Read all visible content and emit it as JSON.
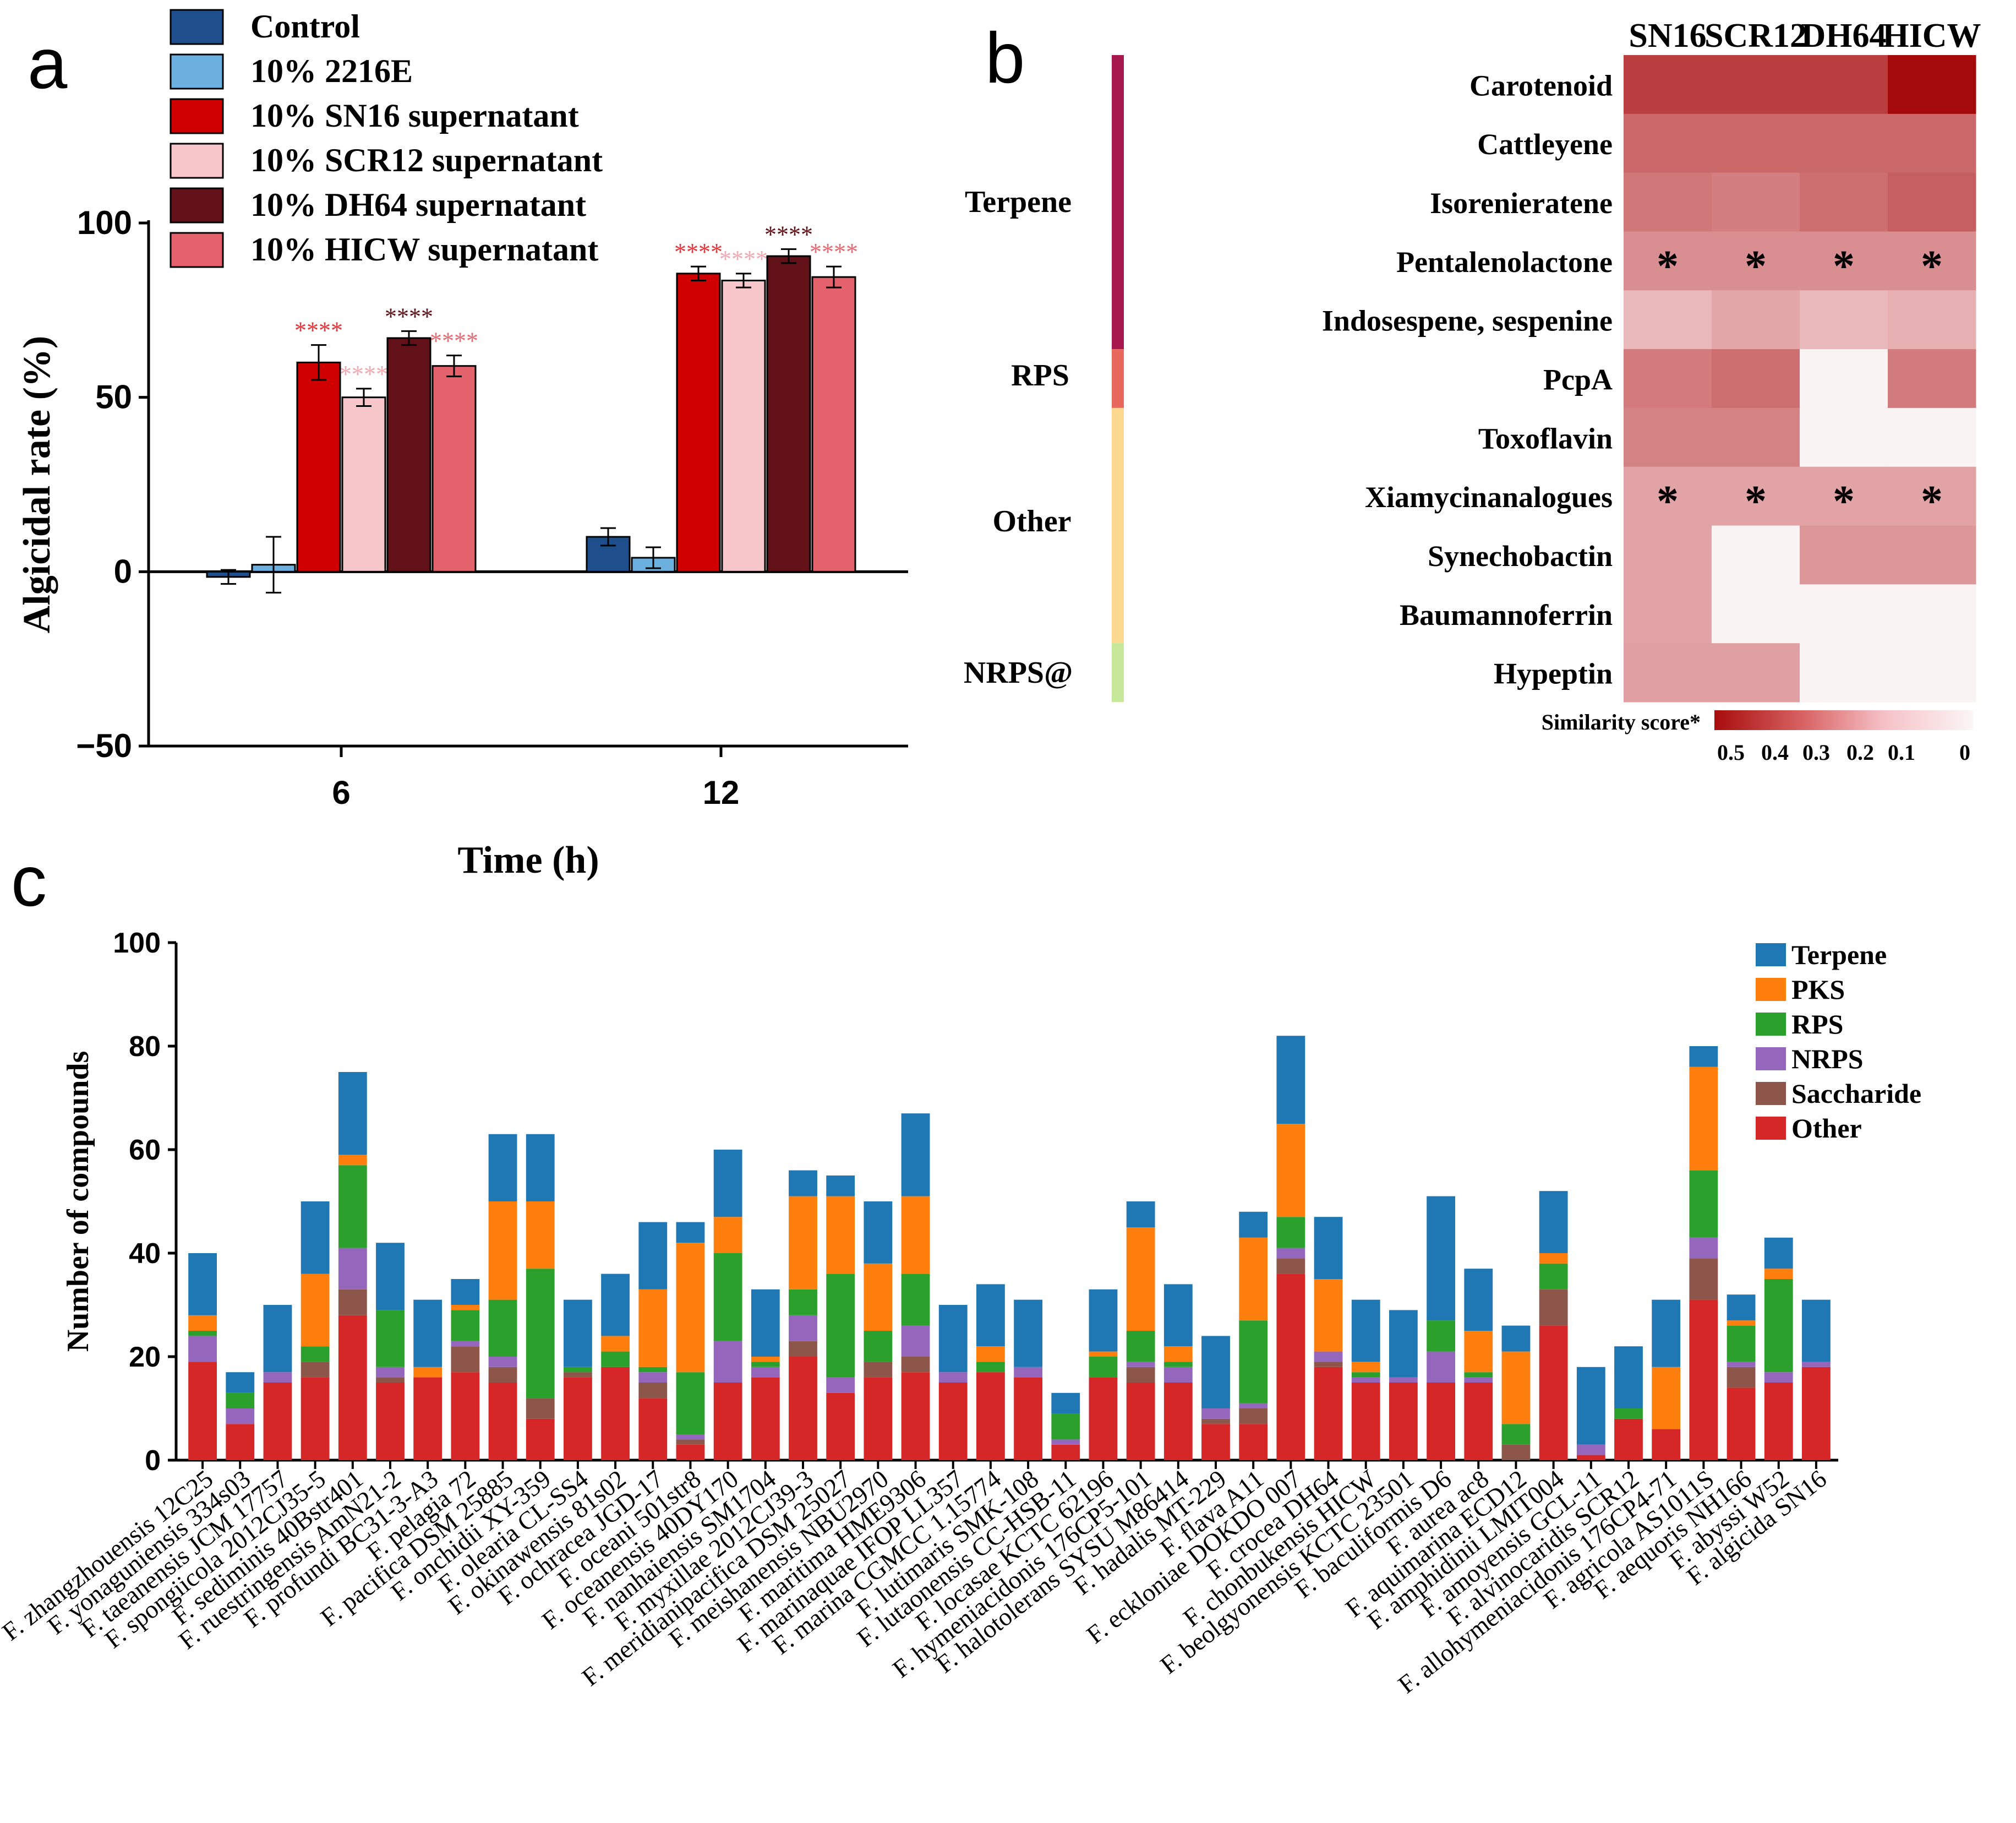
{
  "panel_labels": [
    "a",
    "b",
    "c"
  ],
  "chart_data": [
    {
      "type": "bar",
      "panel": "a",
      "title": "",
      "xlabel": "Time (h)",
      "ylabel": "Algicidal rate (%)",
      "ylim": [
        -50,
        100
      ],
      "yticks": [
        "−50",
        "0",
        "50",
        "100"
      ],
      "categories": [
        "6",
        "12"
      ],
      "significance": "****",
      "series": [
        {
          "name": "Control",
          "color": "#1f4e8c",
          "values": [
            -1.5,
            10
          ],
          "errors": [
            2,
            2.5
          ]
        },
        {
          "name": "10% 2216E",
          "color": "#6cb0e0",
          "values": [
            2,
            4
          ],
          "errors": [
            8,
            3
          ]
        },
        {
          "name": "10% SN16 supernatant",
          "color": "#d10000",
          "values": [
            60,
            85.5
          ],
          "errors": [
            5,
            2
          ]
        },
        {
          "name": "10% SCR12 supernatant",
          "color": "#f7c6cb",
          "values": [
            50,
            83.5
          ],
          "errors": [
            2.5,
            2
          ]
        },
        {
          "name": "10% DH64 supernatant",
          "color": "#621119",
          "values": [
            67,
            90.5
          ],
          "errors": [
            2,
            2
          ]
        },
        {
          "name": "10% HICW supernatant",
          "color": "#e3626b",
          "values": [
            59,
            84.5
          ],
          "errors": [
            3,
            3
          ]
        }
      ],
      "star_colors": [
        "#e8363b",
        "#f2aab2",
        "#621119",
        "#e86a73"
      ]
    },
    {
      "type": "heatmap",
      "panel": "b",
      "columns": [
        "SN16",
        "SCR12",
        "DH64",
        "HICW"
      ],
      "rows": [
        "Carotenoid",
        "Cattleyene",
        "Isorenieratene",
        "Pentalenolactone",
        "Indosespene, sespenine",
        "PcpA",
        "Toxoflavin",
        "Xiamycinanalogues",
        "Synechobactin",
        "Baumannoferrin",
        "Hypeptin"
      ],
      "groups": [
        {
          "name": "Terpene",
          "color": "#a7184f",
          "rows": [
            0,
            4
          ]
        },
        {
          "name": "RPS",
          "color": "#e8685e",
          "rows": [
            5,
            5
          ]
        },
        {
          "name": "Other",
          "color": "#fdd98f",
          "rows": [
            6,
            9
          ]
        },
        {
          "name": "NRPS@",
          "color": "#c7e89a",
          "rows": [
            10,
            10
          ]
        }
      ],
      "values": [
        [
          0.42,
          0.42,
          0.42,
          0.55
        ],
        [
          0.32,
          0.32,
          0.32,
          0.32
        ],
        [
          0.28,
          0.26,
          0.3,
          0.34
        ],
        [
          0.22,
          0.22,
          0.22,
          0.22
        ],
        [
          0.12,
          0.16,
          0.12,
          0.14
        ],
        [
          0.27,
          0.3,
          0.0,
          0.27
        ],
        [
          0.25,
          0.25,
          0.0,
          0.0
        ],
        [
          0.17,
          0.17,
          0.17,
          0.17
        ],
        [
          0.17,
          0.0,
          0.2,
          0.2
        ],
        [
          0.17,
          0.0,
          0.0,
          0.0
        ],
        [
          0.18,
          0.18,
          0.0,
          0.0
        ]
      ],
      "starred_rows": [
        3,
        7
      ],
      "star_symbol": "*",
      "colorbar": {
        "label": "Similarity score*",
        "ticks": [
          "0.5",
          "0.4",
          "0.3",
          "0.2",
          "0.1",
          "0"
        ],
        "range": [
          0,
          0.55
        ]
      }
    },
    {
      "type": "bar",
      "stacked": true,
      "panel": "c",
      "title": "",
      "xlabel": "",
      "ylabel": "Number of compounds",
      "ylim": [
        0,
        100
      ],
      "yticks": [
        "0",
        "20",
        "40",
        "60",
        "80",
        "100"
      ],
      "categories": [
        "F. zhangzhouensis 12C25",
        "F. yonaguniensis 334s03",
        "F. taeanensis JCM 17757",
        "F. spongiicola 2012CJ35-5",
        "F. sediminis 40Bstr401",
        "F. ruestringensis AmN21-2",
        "F. profundi BC31-3-A3",
        "F. pelagia 72",
        "F. pacifica DSM 25885",
        "F. onchidii XY-359",
        "F. olearia CL-SS4",
        "F. okinawensis 81s02",
        "F. ochracea JGD-17",
        "F. oceani 501str8",
        "F. oceanensis 40DY170",
        "F. nanhaiensis SM1704",
        "F. myxillae 2012CJ39-3",
        "F. meridianipacifica DSM 25027",
        "F. meishanensis NBU2970",
        "F. maritima HME9306",
        "F. marinaquae IFOP LL357",
        "F. marina CGMCC 1.15774",
        "F. lutimaris SMK-108",
        "F. lutaonensis CC-HSB-11",
        "F. locasae KCTC 62196",
        "F. hymeniacidonis 176CP5-101",
        "F. halotolerans SYSU M86414",
        "F. hadalis MT-229",
        "F. flava A11",
        "F. eckloniae DOKDO 007",
        "F. crocea DH64",
        "F. chonbukensis HICW",
        "F. beolgyonensis KCTC 23501",
        "F. baculiformis D6",
        "F. aurea ac8",
        "F. aquimarina ECD12",
        "F. amphidinii LMIT004",
        "F. amoyensis GCL-11",
        "F. alvinocaridis SCR12",
        "F. allohymeniacidonis 176CP4-71",
        "F. agricola AS1011S",
        "F. aequoris NH166",
        "F. abyssi W52",
        "F. algicida SN16"
      ],
      "series": [
        {
          "name": "Other",
          "color": "#d62728",
          "values": [
            19,
            7,
            15,
            16,
            28,
            15,
            16,
            17,
            15,
            8,
            16,
            18,
            12,
            3,
            15,
            16,
            20,
            13,
            16,
            17,
            15,
            17,
            16,
            3,
            16,
            15,
            15,
            7,
            7,
            36,
            18,
            15,
            15,
            15,
            15,
            0,
            26,
            1,
            8,
            6,
            31,
            14,
            15,
            18
          ]
        },
        {
          "name": "Saccharide",
          "color": "#8c564b",
          "values": [
            0,
            0,
            0,
            3,
            5,
            1,
            0,
            5,
            3,
            4,
            1,
            0,
            3,
            1,
            0,
            0,
            3,
            0,
            3,
            3,
            0,
            0,
            0,
            0,
            0,
            3,
            0,
            1,
            3,
            3,
            1,
            0,
            0,
            0,
            0,
            3,
            7,
            0,
            0,
            0,
            8,
            4,
            0,
            0
          ]
        },
        {
          "name": "NRPS",
          "color": "#9467bd",
          "values": [
            5,
            3,
            2,
            0,
            8,
            2,
            0,
            1,
            2,
            0,
            0,
            0,
            2,
            1,
            8,
            2,
            5,
            3,
            0,
            6,
            2,
            0,
            2,
            1,
            0,
            1,
            3,
            2,
            1,
            2,
            2,
            1,
            1,
            6,
            1,
            0,
            0,
            2,
            0,
            0,
            4,
            1,
            2,
            1
          ]
        },
        {
          "name": "RPS",
          "color": "#2ca02c",
          "values": [
            1,
            3,
            0,
            3,
            16,
            11,
            0,
            6,
            11,
            25,
            1,
            3,
            1,
            12,
            17,
            1,
            5,
            20,
            6,
            10,
            0,
            2,
            0,
            5,
            4,
            6,
            1,
            0,
            16,
            6,
            0,
            1,
            0,
            6,
            1,
            4,
            5,
            0,
            2,
            0,
            13,
            7,
            18,
            0
          ]
        },
        {
          "name": "PKS",
          "color": "#ff7f0e",
          "values": [
            3,
            0,
            0,
            14,
            2,
            0,
            2,
            1,
            19,
            13,
            0,
            3,
            15,
            25,
            7,
            1,
            18,
            15,
            13,
            15,
            0,
            3,
            0,
            0,
            1,
            20,
            3,
            0,
            16,
            18,
            14,
            2,
            0,
            0,
            8,
            14,
            2,
            0,
            0,
            12,
            20,
            1,
            2,
            0
          ]
        },
        {
          "name": "Terpene",
          "color": "#1f77b4",
          "values": [
            12,
            4,
            13,
            14,
            16,
            13,
            13,
            5,
            13,
            13,
            13,
            12,
            13,
            4,
            13,
            13,
            5,
            4,
            12,
            16,
            13,
            12,
            13,
            4,
            12,
            5,
            12,
            14,
            5,
            17,
            12,
            12,
            13,
            24,
            12,
            5,
            12,
            15,
            12,
            13,
            4,
            5,
            6,
            12
          ]
        }
      ],
      "legend_order": [
        "Terpene",
        "PKS",
        "RPS",
        "NRPS",
        "Saccharide",
        "Other"
      ]
    }
  ]
}
